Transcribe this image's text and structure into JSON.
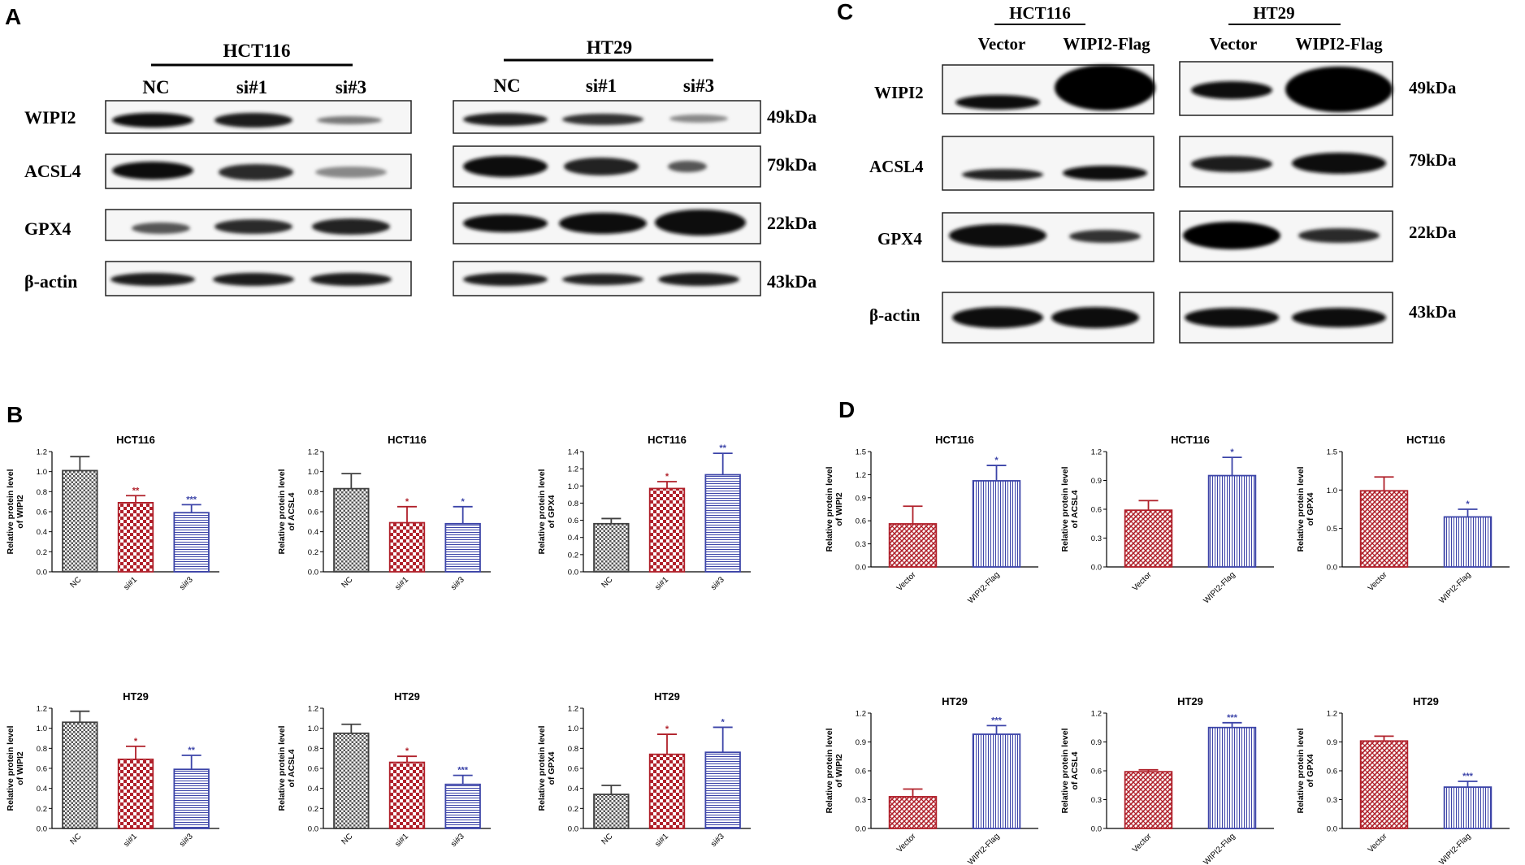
{
  "panels": {
    "A": {
      "letter": "A"
    },
    "B": {
      "letter": "B"
    },
    "C": {
      "letter": "C"
    },
    "D": {
      "letter": "D"
    }
  },
  "blots": {
    "A": {
      "groups": [
        {
          "cell_line": "HCT116",
          "lanes": [
            "NC",
            "si#1",
            "si#3"
          ]
        },
        {
          "cell_line": "HT29",
          "lanes": [
            "NC",
            "si#1",
            "si#3"
          ]
        }
      ],
      "proteins": [
        "WIPI2",
        "ACSL4",
        "GPX4",
        "β-actin"
      ],
      "sizes": [
        "49kDa",
        "79kDa",
        "22kDa",
        "43kDa"
      ]
    },
    "C": {
      "groups": [
        {
          "cell_line": "HCT116",
          "lanes": [
            "Vector",
            "WIPI2-Flag"
          ]
        },
        {
          "cell_line": "HT29",
          "lanes": [
            "Vector",
            "WIPI2-Flag"
          ]
        }
      ],
      "proteins": [
        "WIPI2",
        "ACSL4",
        "GPX4",
        "β-actin"
      ],
      "sizes": [
        "49kDa",
        "79kDa",
        "22kDa",
        "43kDa"
      ]
    }
  },
  "colors": {
    "gray": "#404040",
    "red": "#b0202a",
    "blue": "#3c44a8"
  },
  "chart_data": [
    {
      "panel": "B",
      "type": "bar",
      "title": "HCT116",
      "ylabel": "Relative protein level of WIPI2",
      "categories": [
        "NC",
        "si#1",
        "si#3"
      ],
      "values": [
        1.01,
        0.69,
        0.59
      ],
      "errors": [
        0.14,
        0.07,
        0.08
      ],
      "significance": [
        "",
        "**",
        "***"
      ],
      "ylim": [
        0,
        1.2
      ],
      "yticks": [
        "0.0",
        "0.2",
        "0.4",
        "0.6",
        "0.8",
        "1.0",
        "1.2"
      ]
    },
    {
      "panel": "B",
      "type": "bar",
      "title": "HCT116",
      "ylabel": "Relative protein level of ACSL4",
      "categories": [
        "NC",
        "si#1",
        "si#3"
      ],
      "values": [
        0.83,
        0.49,
        0.48
      ],
      "errors": [
        0.15,
        0.16,
        0.17
      ],
      "significance": [
        "",
        "*",
        "*"
      ],
      "ylim": [
        0,
        1.2
      ],
      "yticks": [
        "0.0",
        "0.2",
        "0.4",
        "0.6",
        "0.8",
        "1.0",
        "1.2"
      ]
    },
    {
      "panel": "B",
      "type": "bar",
      "title": "HCT116",
      "ylabel": "Relative protein level of GPX4",
      "categories": [
        "NC",
        "si#1",
        "si#3"
      ],
      "values": [
        0.56,
        0.97,
        1.13
      ],
      "errors": [
        0.06,
        0.08,
        0.25
      ],
      "significance": [
        "",
        "*",
        "**"
      ],
      "ylim": [
        0,
        1.4
      ],
      "yticks": [
        "0.0",
        "0.2",
        "0.4",
        "0.6",
        "0.8",
        "1.0",
        "1.2",
        "1.4"
      ]
    },
    {
      "panel": "B",
      "type": "bar",
      "title": "HT29",
      "ylabel": "Relative protein level of WIPI2",
      "categories": [
        "NC",
        "si#1",
        "si#3"
      ],
      "values": [
        1.06,
        0.69,
        0.59
      ],
      "errors": [
        0.11,
        0.13,
        0.14
      ],
      "significance": [
        "",
        "*",
        "**"
      ],
      "ylim": [
        0,
        1.2
      ],
      "yticks": [
        "0.0",
        "0.2",
        "0.4",
        "0.6",
        "0.8",
        "1.0",
        "1.2"
      ]
    },
    {
      "panel": "B",
      "type": "bar",
      "title": "HT29",
      "ylabel": "Relative protein level of ACSL4",
      "categories": [
        "NC",
        "si#1",
        "si#3"
      ],
      "values": [
        0.95,
        0.66,
        0.44
      ],
      "errors": [
        0.09,
        0.06,
        0.09
      ],
      "significance": [
        "",
        "*",
        "***"
      ],
      "ylim": [
        0,
        1.2
      ],
      "yticks": [
        "0.0",
        "0.2",
        "0.4",
        "0.6",
        "0.8",
        "1.0",
        "1.2"
      ]
    },
    {
      "panel": "B",
      "type": "bar",
      "title": "HT29",
      "ylabel": "Relative protein level of GPX4",
      "categories": [
        "NC",
        "si#1",
        "si#3"
      ],
      "values": [
        0.34,
        0.74,
        0.76
      ],
      "errors": [
        0.09,
        0.2,
        0.25
      ],
      "significance": [
        "",
        "*",
        "*"
      ],
      "ylim": [
        0,
        1.2
      ],
      "yticks": [
        "0.0",
        "0.2",
        "0.4",
        "0.6",
        "0.8",
        "1.0",
        "1.2"
      ]
    },
    {
      "panel": "D",
      "type": "bar",
      "title": "HCT116",
      "ylabel": "Relative protein level of WIPI2",
      "categories": [
        "Vector",
        "WIPI2-Flag"
      ],
      "values": [
        0.56,
        1.12
      ],
      "errors": [
        0.23,
        0.2
      ],
      "significance": [
        "",
        "*"
      ],
      "ylim": [
        0,
        1.5
      ],
      "yticks": [
        "0.0",
        "0.3",
        "0.6",
        "0.9",
        "1.2",
        "1.5"
      ]
    },
    {
      "panel": "D",
      "type": "bar",
      "title": "HCT116",
      "ylabel": "Relative protein level of ACSL4",
      "categories": [
        "Vector",
        "WIPI2-Flag"
      ],
      "values": [
        0.59,
        0.95
      ],
      "errors": [
        0.1,
        0.19
      ],
      "significance": [
        "",
        "*"
      ],
      "ylim": [
        0,
        1.2
      ],
      "yticks": [
        "0.0",
        "0.3",
        "0.6",
        "0.9",
        "1.2"
      ]
    },
    {
      "panel": "D",
      "type": "bar",
      "title": "HCT116",
      "ylabel": "Relative protein level of GPX4",
      "categories": [
        "Vector",
        "WIPI2-Flag"
      ],
      "values": [
        0.99,
        0.65
      ],
      "errors": [
        0.18,
        0.1
      ],
      "significance": [
        "",
        "*"
      ],
      "ylim": [
        0,
        1.5
      ],
      "yticks": [
        "0.0",
        "0.5",
        "1.0",
        "1.5"
      ]
    },
    {
      "panel": "D",
      "type": "bar",
      "title": "HT29",
      "ylabel": "Relative protein level of WIPI2",
      "categories": [
        "Vector",
        "WIPI2-Flag"
      ],
      "values": [
        0.33,
        0.98
      ],
      "errors": [
        0.08,
        0.09
      ],
      "significance": [
        "",
        "***"
      ],
      "ylim": [
        0,
        1.2
      ],
      "yticks": [
        "0.0",
        "0.3",
        "0.6",
        "0.9",
        "1.2"
      ]
    },
    {
      "panel": "D",
      "type": "bar",
      "title": "HT29",
      "ylabel": "Relative protein level of ACSL4",
      "categories": [
        "Vector",
        "WIPI2-Flag"
      ],
      "values": [
        0.59,
        1.05
      ],
      "errors": [
        0.02,
        0.05
      ],
      "significance": [
        "",
        "***"
      ],
      "ylim": [
        0,
        1.2
      ],
      "yticks": [
        "0.0",
        "0.3",
        "0.6",
        "0.9",
        "1.2"
      ]
    },
    {
      "panel": "D",
      "type": "bar",
      "title": "HT29",
      "ylabel": "Relative protein level of GPX4",
      "categories": [
        "Vector",
        "WIPI2-Flag"
      ],
      "values": [
        0.91,
        0.43
      ],
      "errors": [
        0.05,
        0.06
      ],
      "significance": [
        "",
        "***"
      ],
      "ylim": [
        0,
        1.2
      ],
      "yticks": [
        "0.0",
        "0.3",
        "0.6",
        "0.9",
        "1.2"
      ]
    }
  ]
}
